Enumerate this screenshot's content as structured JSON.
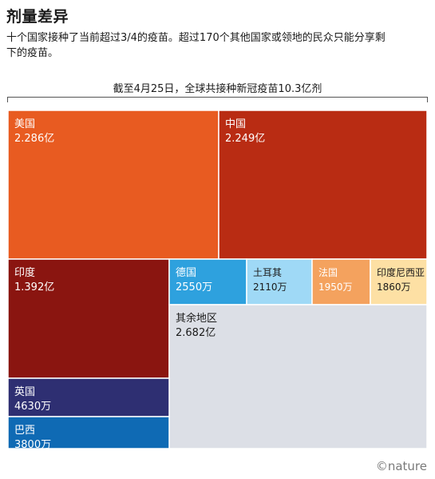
{
  "header": {
    "title": "剂量差异",
    "subtitle": "十个国家接种了当前超过3/4的疫苗。超过170个其他国家或领地的民众只能分享剩下的疫苗。"
  },
  "footer": {
    "brand": "©nature"
  },
  "chart_data": {
    "type": "treemap",
    "title": "截至4月25日，全球共接种新冠疫苗10.3亿剂",
    "unit": "剂",
    "total_value": 1030000000,
    "items": [
      {
        "name": "美国",
        "value_label": "2.286亿",
        "value": 228600000,
        "color": "#e85b21"
      },
      {
        "name": "中国",
        "value_label": "2.249亿",
        "value": 224900000,
        "color": "#b92c13"
      },
      {
        "name": "印度",
        "value_label": "1.392亿",
        "value": 139200000,
        "color": "#8a1510"
      },
      {
        "name": "德国",
        "value_label": "2550万",
        "value": 25500000,
        "color": "#2ea1de"
      },
      {
        "name": "土耳其",
        "value_label": "2110万",
        "value": 21100000,
        "color": "#9fd9f6"
      },
      {
        "name": "法国",
        "value_label": "1950万",
        "value": 19500000,
        "color": "#f4a25e"
      },
      {
        "name": "印度尼西亚",
        "value_label": "1860万",
        "value": 18600000,
        "color": "#fde0a4"
      },
      {
        "name": "其余地区",
        "value_label": "2.682亿",
        "value": 268200000,
        "color": "#dcdfe6"
      },
      {
        "name": "英国",
        "value_label": "4630万",
        "value": 46300000,
        "color": "#2e2f72"
      },
      {
        "name": "巴西",
        "value_label": "3800万",
        "value": 38000000,
        "color": "#0f6ab4"
      }
    ]
  }
}
